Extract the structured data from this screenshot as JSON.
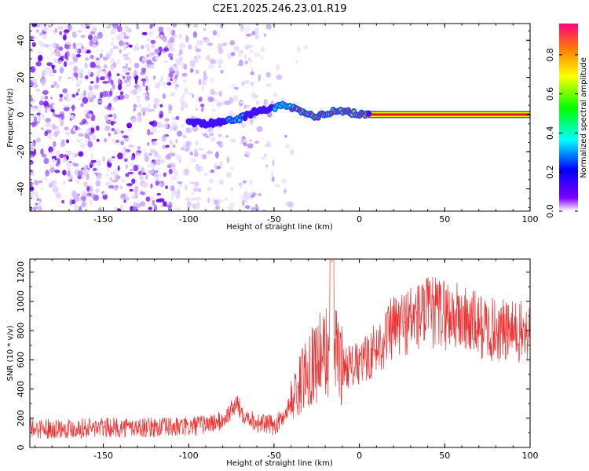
{
  "title": "C2E1.2025.246.23.01.R19",
  "chart_data": [
    {
      "type": "heatmap",
      "xlabel": "Height of straight line (km)",
      "ylabel": "Frequency (Hz)",
      "xlim": [
        -193,
        100
      ],
      "ylim": [
        -52,
        49
      ],
      "xticks": [
        -150,
        -100,
        -50,
        0,
        50,
        100
      ],
      "yticks": [
        -40,
        -20,
        0,
        20,
        40
      ],
      "colorbar": {
        "label": "Normalized spectral amplitude",
        "range": [
          0,
          0.96
        ],
        "ticks": [
          "0.0",
          "0.2",
          "0.4",
          "0.6",
          "0.8"
        ],
        "colormap": [
          "#ffffff",
          "#8000ff",
          "#0000ff",
          "#00ffff",
          "#00ff00",
          "#ffff00",
          "#ff8000",
          "#ff0080"
        ]
      },
      "signal_track": {
        "x": [
          -100,
          -90,
          -80,
          -75,
          -70,
          -65,
          -60,
          -55,
          -50,
          -45,
          -40,
          -35,
          -30,
          -25,
          -20,
          -15,
          -10,
          -5,
          0,
          5,
          100
        ],
        "y": [
          -4,
          -5,
          -4,
          -3,
          -2,
          0,
          2,
          3,
          3,
          5,
          4,
          2,
          0,
          -1,
          0,
          2,
          2,
          1,
          0,
          0,
          0
        ]
      },
      "noise_region_x": [
        -193,
        -40
      ]
    },
    {
      "type": "line",
      "xlabel": "Height of straight line (km)",
      "ylabel": "SNR (10 * v/v)",
      "xlim": [
        -193,
        100
      ],
      "ylim": [
        0,
        1290
      ],
      "xticks": [
        -150,
        -100,
        -50,
        0,
        50,
        100
      ],
      "yticks": [
        0,
        200,
        400,
        600,
        800,
        1000,
        1200
      ],
      "color": "#f03030",
      "envelope": {
        "x": [
          -193,
          -150,
          -100,
          -80,
          -72,
          -68,
          -60,
          -50,
          -45,
          -40,
          -35,
          -30,
          -25,
          -20,
          -16,
          -10,
          0,
          10,
          20,
          30,
          40,
          50,
          60,
          70,
          80,
          90,
          100
        ],
        "y": [
          130,
          135,
          140,
          180,
          300,
          230,
          170,
          150,
          200,
          310,
          420,
          560,
          600,
          650,
          700,
          560,
          560,
          680,
          820,
          880,
          920,
          920,
          880,
          830,
          800,
          790,
          780
        ]
      }
    }
  ]
}
